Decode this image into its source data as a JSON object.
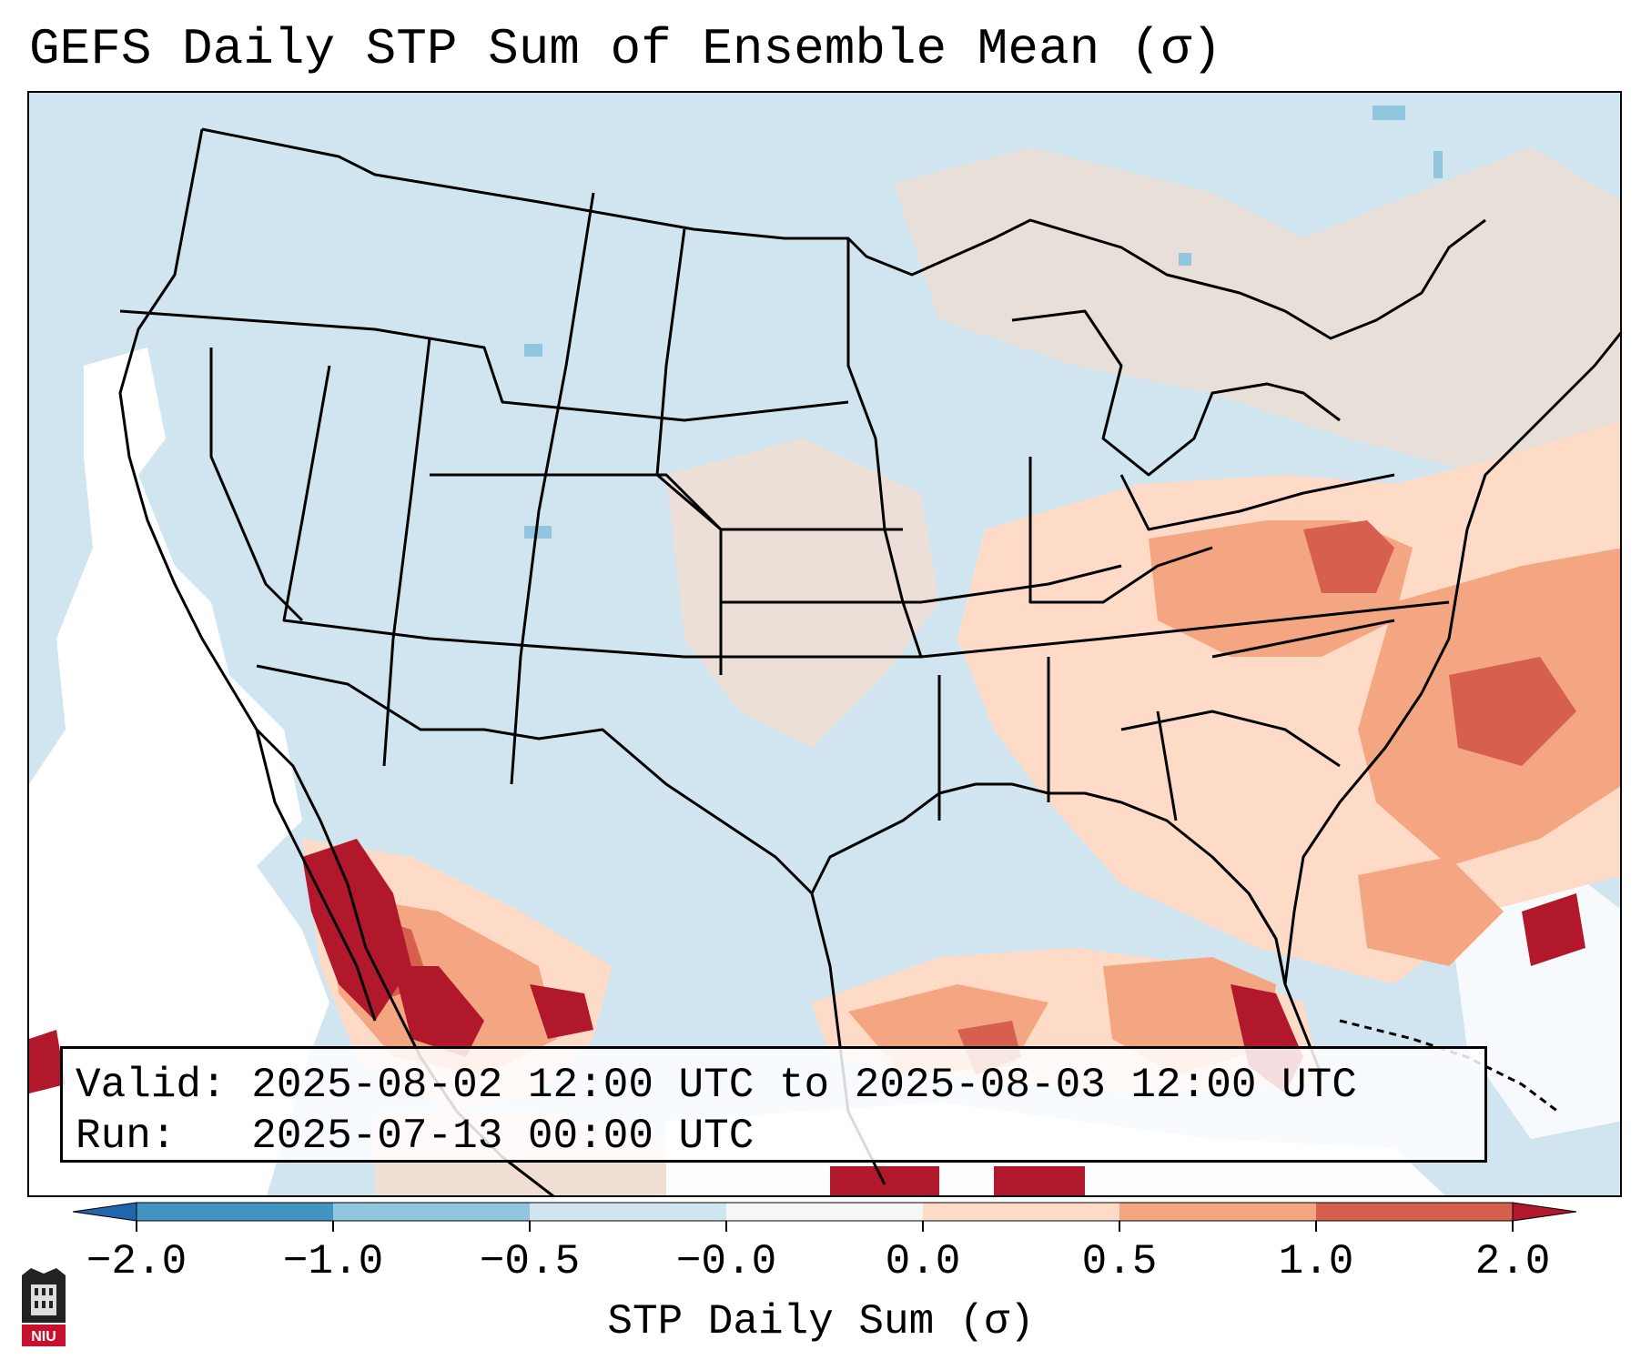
{
  "title": "GEFS Daily STP Sum of Ensemble Mean (σ)",
  "info": {
    "valid_label": "Valid:",
    "valid_value": "2025-08-02 12:00 UTC to 2025-08-03 12:00 UTC",
    "run_label": "Run:",
    "run_value": "2025-07-13 00:00 UTC"
  },
  "colorbar": {
    "label": "STP Daily Sum (σ)",
    "ticks": [
      "−2.0",
      "−1.0",
      "−0.5",
      "−0.0",
      "0.0",
      "0.5",
      "1.0",
      "2.0"
    ],
    "bins": [
      {
        "color": "#2166ac"
      },
      {
        "color": "#4393c3"
      },
      {
        "color": "#92c5de"
      },
      {
        "color": "#d1e5f0"
      },
      {
        "color": "#f7f7f7"
      },
      {
        "color": "#fddbc7"
      },
      {
        "color": "#f4a582"
      },
      {
        "color": "#d6604d"
      },
      {
        "color": "#b2182b"
      }
    ]
  },
  "legend_logo_text": "NIU",
  "colors": {
    "background": "#d1e5f0",
    "near_zero": "#ffffff",
    "light_pos": "#fddbc7",
    "mid_pos": "#f4a582",
    "high_pos": "#d6604d",
    "max_pos": "#b2182b",
    "light_neg": "#92c5de"
  }
}
